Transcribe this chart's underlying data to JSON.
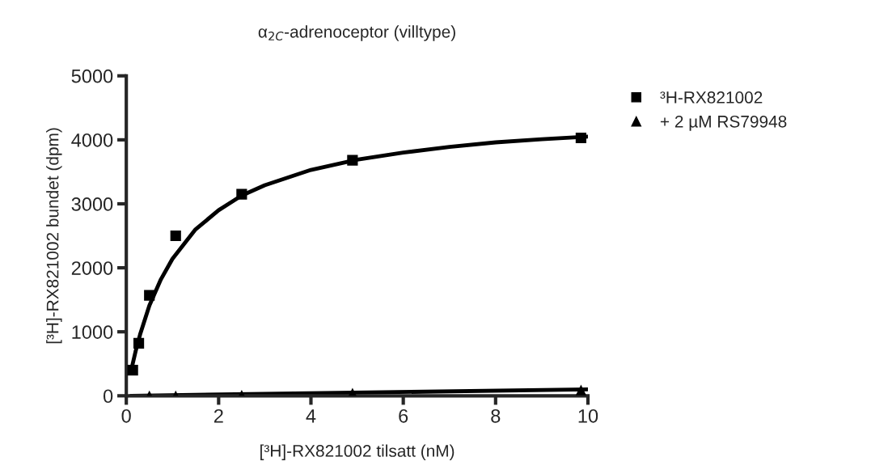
{
  "chart_data": {
    "type": "scatter",
    "title": "α$_{2C}$-adrenoceptor (villtype)",
    "xlabel": "[³H]-RX821002 tilsatt (nM)",
    "ylabel": "[³H]-RX821002 bundet (dpm)",
    "xlim": [
      0,
      10
    ],
    "xticks": [
      0,
      2,
      4,
      6,
      8,
      10
    ],
    "ylim": [
      0,
      5000
    ],
    "yticks": [
      0,
      1000,
      2000,
      3000,
      4000,
      5000
    ],
    "grid": false,
    "legend": "top right",
    "series": [
      {
        "name": "³H-RX821002",
        "marker": "square",
        "color": "#000000",
        "x": [
          0.14,
          0.27,
          0.5,
          1.07,
          2.5,
          4.9,
          9.85
        ],
        "values": [
          400,
          820,
          1570,
          2500,
          3150,
          3680,
          4030
        ]
      },
      {
        "name": "+ 2 µM RS79948",
        "marker": "triangle",
        "color": "#000000",
        "x": [
          0.5,
          1.07,
          2.5,
          4.9,
          9.85
        ],
        "values": [
          0,
          0,
          10,
          40,
          90
        ]
      },
      {
        "type": "line",
        "marker": "none",
        "line_style": "solid",
        "color": "#000000",
        "x": [
          0.1,
          0.2,
          0.3,
          0.5,
          0.75,
          1,
          1.5,
          2,
          2.5,
          3,
          4,
          5,
          6,
          7,
          8,
          9,
          10
        ],
        "values": [
          380,
          690,
          960,
          1410,
          1820,
          2140,
          2600,
          2900,
          3130,
          3290,
          3530,
          3690,
          3800,
          3890,
          3960,
          4010,
          4050
        ]
      },
      {
        "type": "line",
        "marker": "none",
        "line_style": "solid",
        "color": "#000000",
        "x": [
          0.1,
          10
        ],
        "values": [
          0,
          100
        ]
      }
    ]
  }
}
